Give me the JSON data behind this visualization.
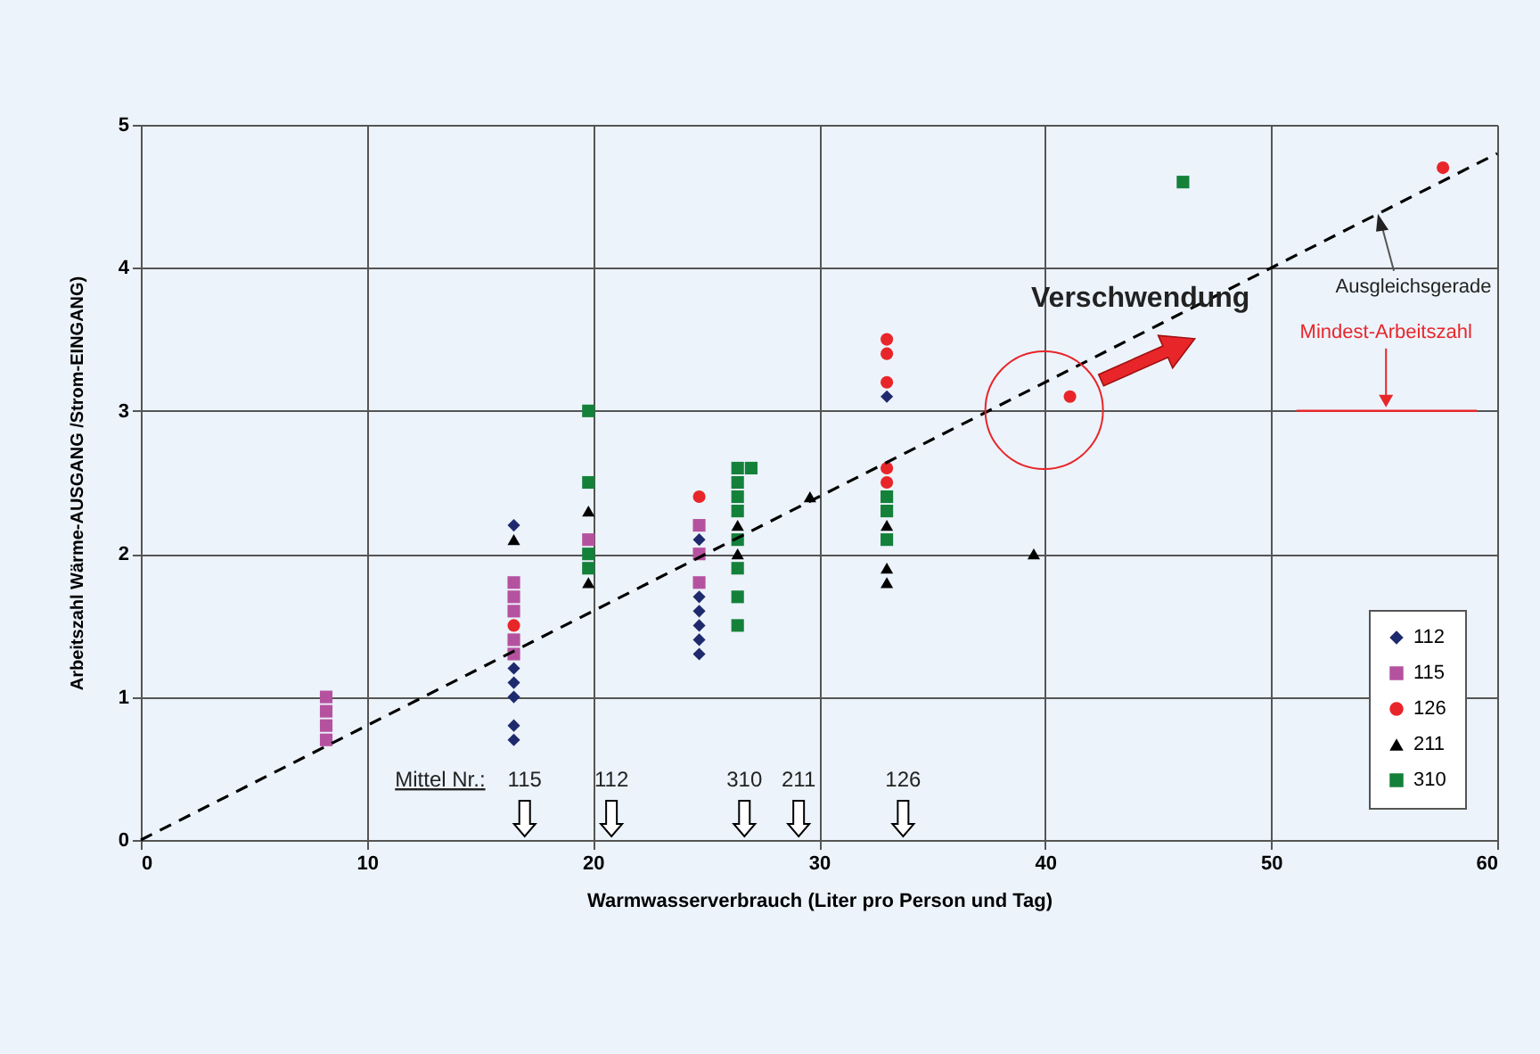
{
  "chart_data": {
    "type": "scatter",
    "xlabel": "Warmwasserverbrauch  (Liter pro Person und Tag)",
    "ylabel": "Arbeitszahl  Wärme-AUSGANG /Strom-EINGANG)",
    "xlim": [
      0,
      60
    ],
    "xticks": [
      0,
      10,
      20,
      30,
      40,
      50,
      60
    ],
    "ylim": [
      0,
      5
    ],
    "yticks": [
      0,
      1,
      2,
      3,
      4,
      5
    ],
    "grid": true,
    "legend": "bottom right",
    "series": [
      {
        "name": "112",
        "color": "#1f2a6e",
        "marker": "diamond",
        "x": [
          16.5,
          16.5,
          16.5,
          16.5,
          16.5,
          16.5,
          24.7,
          24.7,
          24.7,
          24.7,
          24.7,
          24.7,
          33.0
        ],
        "values": [
          2.2,
          1.2,
          1.1,
          1.0,
          0.8,
          0.7,
          2.1,
          1.7,
          1.6,
          1.5,
          1.4,
          1.3,
          3.1
        ]
      },
      {
        "name": "115",
        "color": "#b5529f",
        "marker": "square",
        "x": [
          8.2,
          8.2,
          8.2,
          8.2,
          16.5,
          16.5,
          16.5,
          16.5,
          16.5,
          19.8,
          24.7,
          24.7,
          24.7
        ],
        "values": [
          1.0,
          0.9,
          0.8,
          0.7,
          1.8,
          1.7,
          1.6,
          1.4,
          1.3,
          2.1,
          2.2,
          2.0,
          1.8
        ]
      },
      {
        "name": "126",
        "color": "#e8262a",
        "marker": "circle",
        "x": [
          16.5,
          24.7,
          33.0,
          33.0,
          33.0,
          33.0,
          33.0,
          41.1,
          57.6
        ],
        "values": [
          1.5,
          2.4,
          3.5,
          3.4,
          3.2,
          2.6,
          2.5,
          3.1,
          4.7
        ]
      },
      {
        "name": "211",
        "color": "#000000",
        "marker": "triangle",
        "x": [
          16.5,
          19.8,
          19.8,
          26.4,
          26.4,
          29.6,
          33.0,
          33.0,
          33.0,
          39.5
        ],
        "values": [
          2.1,
          2.3,
          1.8,
          2.2,
          2.0,
          2.4,
          2.2,
          1.9,
          1.8,
          2.0
        ]
      },
      {
        "name": "310",
        "color": "#14813a",
        "marker": "square",
        "x": [
          19.8,
          19.8,
          19.8,
          19.8,
          26.4,
          26.4,
          26.4,
          26.4,
          26.4,
          26.4,
          26.4,
          26.4,
          27.0,
          33.0,
          33.0,
          33.0,
          46.1
        ],
        "values": [
          3.0,
          2.5,
          2.0,
          1.9,
          2.6,
          2.5,
          2.4,
          2.3,
          2.1,
          1.9,
          1.7,
          1.5,
          2.6,
          2.4,
          2.3,
          2.1,
          4.6
        ]
      },
      {
        "name": "Ausgleichsgerade",
        "type": "line",
        "line_style": "dashed",
        "color": "#000000",
        "x": [
          0,
          60
        ],
        "values": [
          0,
          4.8
        ]
      }
    ],
    "ref_lines": [
      {
        "axis": "y",
        "value": 3,
        "label": "Mindest-Arbeitszahl",
        "color": "#e8262a"
      }
    ],
    "annotations": [
      "Verschwendung",
      "Mittel Nr.:",
      "115",
      "112",
      "310",
      "211",
      "126"
    ]
  }
}
